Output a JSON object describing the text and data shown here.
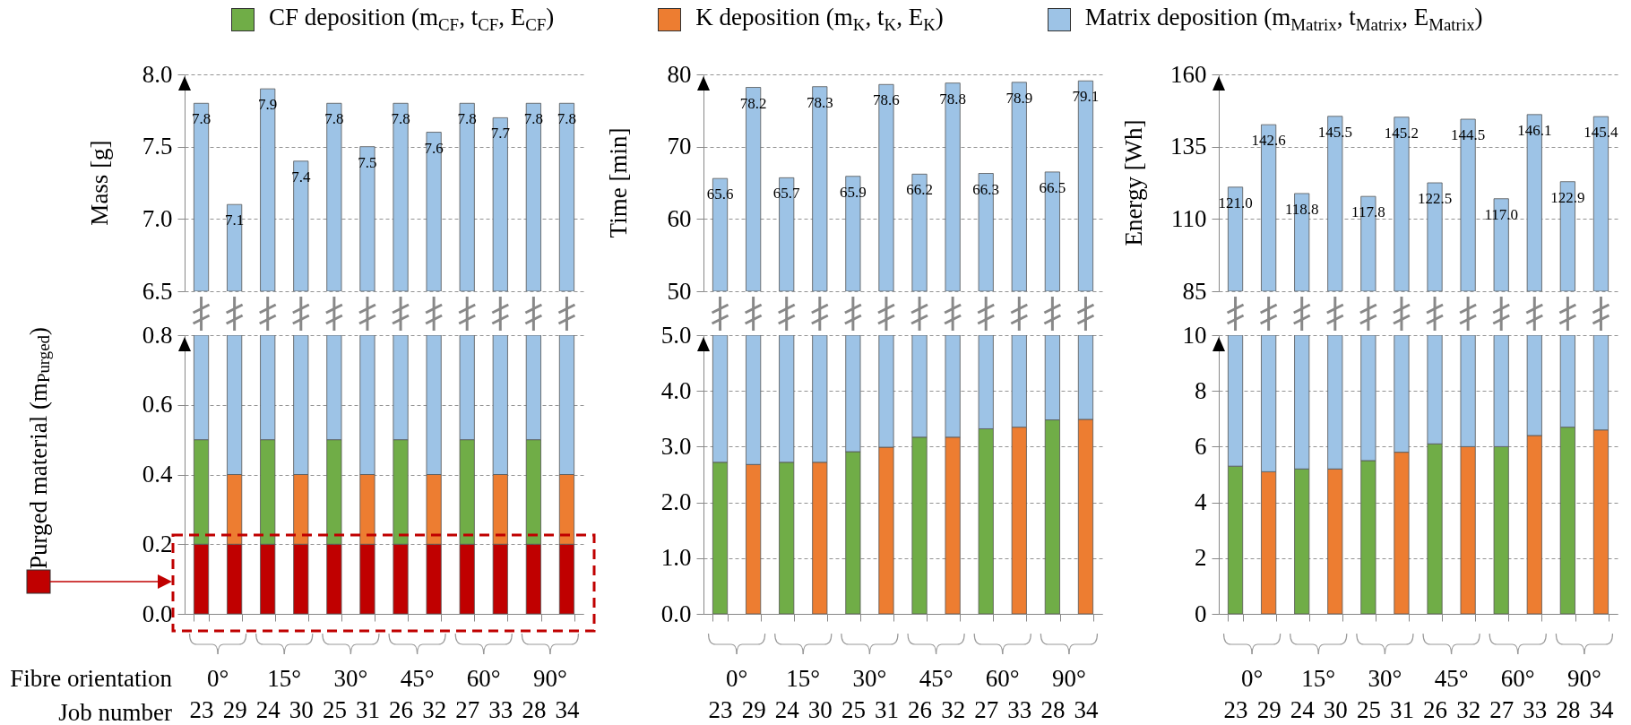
{
  "chart_data": [
    {
      "type": "bar",
      "ylabel": "Mass [g]",
      "categories": [
        "23",
        "29",
        "24",
        "30",
        "25",
        "31",
        "26",
        "32",
        "27",
        "33",
        "28",
        "34"
      ],
      "color": "#9dc3e6",
      "values": [
        7.8,
        7.1,
        7.9,
        7.4,
        7.8,
        7.5,
        7.8,
        7.6,
        7.8,
        7.7,
        7.8,
        7.8
      ],
      "ylim": [
        6.5,
        8.0
      ],
      "yticks": [
        6.5,
        {
          "value": 7,
          "label": "7.0"
        },
        7.5,
        {
          "value": 8,
          "label": "8.0"
        }
      ],
      "grid": "y",
      "data_labels": true,
      "tick_labels": "y"
    },
    {
      "type": "bar",
      "ylabel": "Time [min]",
      "categories": [
        "23",
        "29",
        "24",
        "30",
        "25",
        "31",
        "26",
        "32",
        "27",
        "33",
        "28",
        "34"
      ],
      "color": "#9dc3e6",
      "values": [
        65.6,
        78.2,
        65.7,
        78.3,
        65.9,
        78.6,
        66.2,
        78.8,
        66.3,
        78.9,
        66.5,
        79.1
      ],
      "ylim": [
        50,
        80
      ],
      "yticks": [
        50,
        60,
        70,
        80
      ],
      "grid": "y",
      "data_labels": true,
      "tick_labels": "y"
    },
    {
      "type": "bar",
      "ylabel": "Energy [Wh]",
      "categories": [
        "23",
        "29",
        "24",
        "30",
        "25",
        "31",
        "26",
        "32",
        "27",
        "33",
        "28",
        "34"
      ],
      "color": "#9dc3e6",
      "values": [
        121.0,
        142.6,
        118.8,
        145.5,
        117.8,
        145.2,
        122.5,
        144.5,
        117.0,
        146.1,
        122.9,
        145.4
      ],
      "value_labels": [
        "121.0",
        "142.6",
        "118.8",
        "145.5",
        "117.8",
        "145.2",
        "122.5",
        "144.5",
        "117.0",
        "146.1",
        "122.9",
        "145.4"
      ],
      "ylim": [
        85,
        160
      ],
      "yticks": [
        85,
        110,
        135,
        160
      ],
      "grid": "y",
      "tick_labels": "y"
    },
    {
      "type": "bar",
      "ylabel": "Purged material (m$_{Purged}$)",
      "xlabel": "Job number",
      "categories": [
        "23",
        "29",
        "24",
        "30",
        "25",
        "31",
        "26",
        "32",
        "27",
        "33",
        "28",
        "34"
      ],
      "stacked": true,
      "legend": "top",
      "series": [
        {
          "color": "#c00000",
          "values": [
            0.2,
            0.2,
            0.2,
            0.2,
            0.2,
            0.2,
            0.2,
            0.2,
            0.2,
            0.2,
            0.2,
            0.2
          ]
        },
        {
          "name": "CF deposition (m$_{CF}$, t$_{CF}$, E$_{CF}$)",
          "color": "#70ad47",
          "values": [
            0.3,
            null,
            0.3,
            null,
            0.3,
            null,
            0.3,
            null,
            0.3,
            null,
            0.3,
            null
          ]
        },
        {
          "name": "K deposition (m$_{K}$, t$_{K}$, E$_{K}$)",
          "color": "#ed7d31",
          "values": [
            null,
            0.2,
            null,
            0.2,
            null,
            0.2,
            null,
            0.2,
            null,
            0.2,
            null,
            0.2
          ]
        },
        {
          "name": "Matrix deposition (m$_{Matrix}$, t$_{Matrix}$, E$_{Matrix}$)",
          "color": "#9dc3e6",
          "values": [
            0.3,
            0.4,
            0.3,
            0.4,
            0.3,
            0.4,
            0.3,
            0.4,
            0.3,
            0.4,
            0.3,
            0.4
          ]
        }
      ],
      "ylim": [
        0,
        0.8
      ],
      "yticks": [
        {
          "value": 0,
          "label": "0.0"
        },
        0.2,
        0.4,
        0.6,
        0.8
      ],
      "grid": "y",
      "annotations": [
        "Fibre orientation",
        "0°",
        "15°",
        "30°",
        "45°",
        "60°",
        "90°"
      ]
    },
    {
      "type": "bar",
      "categories": [
        "23",
        "29",
        "24",
        "30",
        "25",
        "31",
        "26",
        "32",
        "27",
        "33",
        "28",
        "34"
      ],
      "stacked": true,
      "series": [
        {
          "color": "#70ad47",
          "values": [
            2.72,
            null,
            2.72,
            null,
            2.91,
            null,
            3.17,
            null,
            3.32,
            null,
            3.48,
            null
          ]
        },
        {
          "color": "#ed7d31",
          "values": [
            null,
            2.68,
            null,
            2.72,
            null,
            2.99,
            null,
            3.17,
            null,
            3.35,
            null,
            3.49
          ]
        },
        {
          "color": "#9dc3e6",
          "values": [
            2.28,
            2.32,
            2.28,
            2.28,
            2.09,
            2.01,
            1.83,
            1.83,
            1.68,
            1.65,
            1.52,
            1.51
          ]
        }
      ],
      "ylim": [
        0,
        5
      ],
      "yticks": [
        {
          "value": 0,
          "label": "0.0"
        },
        {
          "value": 1,
          "label": "1.0"
        },
        {
          "value": 2,
          "label": "2.0"
        },
        {
          "value": 3,
          "label": "3.0"
        },
        {
          "value": 4,
          "label": "4.0"
        },
        {
          "value": 5,
          "label": "5.0"
        }
      ],
      "grid": "y",
      "annotations": [
        "0°",
        "15°",
        "30°",
        "45°",
        "60°",
        "90°"
      ]
    },
    {
      "type": "bar",
      "categories": [
        "23",
        "29",
        "24",
        "30",
        "25",
        "31",
        "26",
        "32",
        "27",
        "33",
        "28",
        "34"
      ],
      "stacked": true,
      "series": [
        {
          "color": "#70ad47",
          "values": [
            5.3,
            null,
            5.2,
            null,
            5.5,
            null,
            6.1,
            null,
            6.0,
            null,
            6.7,
            null
          ]
        },
        {
          "color": "#ed7d31",
          "values": [
            null,
            5.1,
            null,
            5.2,
            null,
            5.8,
            null,
            6.0,
            null,
            6.4,
            null,
            6.6
          ]
        },
        {
          "color": "#9dc3e6",
          "values": [
            4.7,
            4.9,
            4.8,
            4.8,
            4.5,
            4.2,
            3.9,
            4.0,
            4.0,
            3.6,
            3.3,
            3.4
          ]
        }
      ],
      "ylim": [
        0,
        10
      ],
      "yticks": [
        0,
        2,
        4,
        6,
        8,
        10
      ],
      "grid": "y",
      "annotations": [
        "0°",
        "15°",
        "30°",
        "45°",
        "60°",
        "90°"
      ]
    }
  ]
}
